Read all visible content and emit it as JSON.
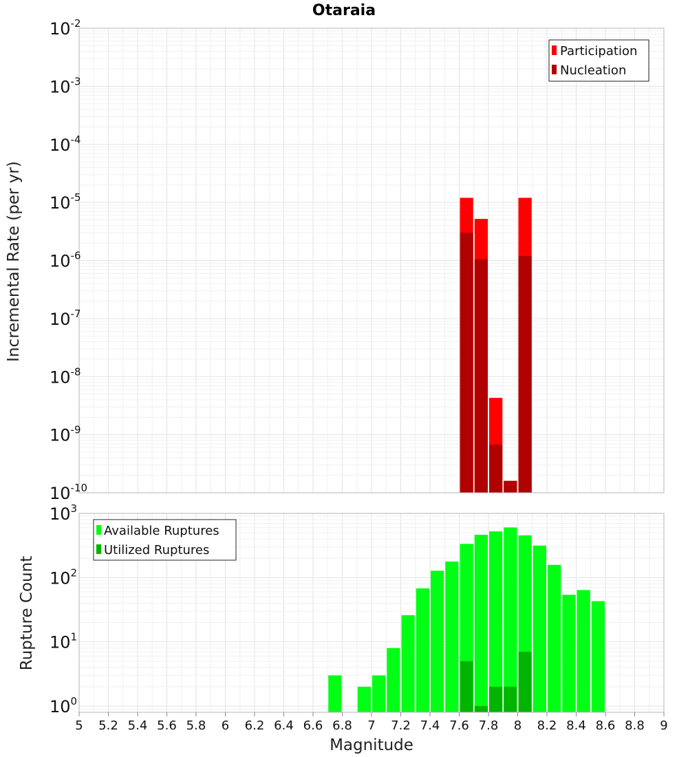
{
  "title": "Otaraia",
  "colors": {
    "participation": "#ff0000",
    "nucleation": "#b00000",
    "available": "#00ff14",
    "utilized": "#00b400"
  },
  "chart_data": [
    {
      "type": "bar",
      "title": "Otaraia",
      "xlabel": "Magnitude",
      "ylabel": "Incremental Rate (per yr)",
      "yscale": "log",
      "xlim": [
        5,
        9
      ],
      "ylim": [
        1e-10,
        0.01
      ],
      "y_tick_exponents": [
        "-2",
        "-3",
        "-4",
        "-5",
        "-6",
        "-7",
        "-8",
        "-9",
        "-10"
      ],
      "y_tick_base": "10",
      "legend": [
        "Participation",
        "Nucleation"
      ],
      "legend_position": "top-right",
      "grid": true,
      "bar_width": 0.1,
      "series": [
        {
          "name": "Participation",
          "color": "#ff0000",
          "x": [
            7.65,
            7.75,
            7.85,
            7.95,
            8.05
          ],
          "values": [
            1.2e-05,
            5.2e-06,
            4.3e-09,
            1.6e-10,
            1.2e-05
          ]
        },
        {
          "name": "Nucleation",
          "color": "#b00000",
          "x": [
            7.65,
            7.75,
            7.85,
            7.95,
            8.05
          ],
          "values": [
            3e-06,
            1.05e-06,
            6.7e-10,
            1.6e-10,
            1.2e-06
          ]
        }
      ]
    },
    {
      "type": "bar",
      "xlabel": "Magnitude",
      "ylabel": "Rupture Count",
      "yscale": "log",
      "xlim": [
        5,
        9
      ],
      "ylim": [
        0.8,
        1000
      ],
      "y_tick_exponents": [
        "3",
        "2",
        "1",
        "0"
      ],
      "y_tick_base": "10",
      "x_ticks": [
        "5",
        "5.2",
        "5.4",
        "5.6",
        "5.8",
        "6",
        "6.2",
        "6.4",
        "6.6",
        "6.8",
        "7",
        "7.2",
        "7.4",
        "7.6",
        "7.8",
        "8",
        "8.2",
        "8.4",
        "8.6",
        "8.8",
        "9"
      ],
      "legend": [
        "Available Ruptures",
        "Utilized Ruptures"
      ],
      "legend_position": "top-left",
      "grid": true,
      "bar_width": 0.1,
      "series": [
        {
          "name": "Available Ruptures",
          "color": "#00ff14",
          "x": [
            6.75,
            6.95,
            7.05,
            7.15,
            7.25,
            7.35,
            7.45,
            7.55,
            7.65,
            7.75,
            7.85,
            7.95,
            8.05,
            8.15,
            8.25,
            8.35,
            8.45,
            8.55
          ],
          "values": [
            3,
            2,
            3,
            8,
            26,
            68,
            128,
            178,
            335,
            465,
            525,
            605,
            455,
            315,
            158,
            54,
            64,
            43
          ]
        },
        {
          "name": "Utilized Ruptures",
          "color": "#00b400",
          "x": [
            7.65,
            7.75,
            7.85,
            7.95,
            8.05
          ],
          "values": [
            5,
            1,
            2,
            2,
            7
          ]
        }
      ]
    }
  ]
}
